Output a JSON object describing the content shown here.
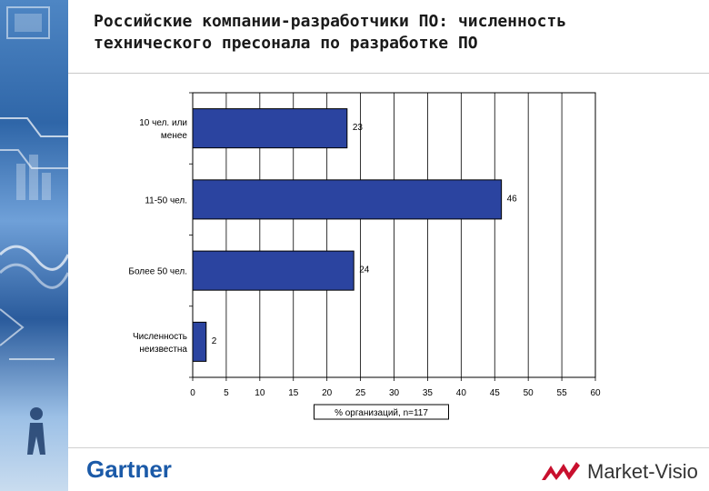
{
  "header": {
    "title_line1": "Российские компании-разработчики ПО: численность",
    "title_line2": "технического пресонала по разработке ПО"
  },
  "colors": {
    "bar_fill": "#2b44a0",
    "bar_stroke": "#000000",
    "grid": "#000000",
    "plot_bg": "#ffffff",
    "brand_gartner": "#1b5aa8",
    "brand_marketvisio": "#c8102e"
  },
  "chart_data": {
    "type": "bar",
    "orientation": "horizontal",
    "categories": [
      "10 чел. или менее",
      "11-50 чел.",
      "Более 50 чел.",
      "Численность неизвестна"
    ],
    "category_labels": [
      [
        "10 чел. или",
        "менее"
      ],
      [
        "11-50 чел."
      ],
      [
        "Более 50 чел."
      ],
      [
        "Численность",
        "неизвестна"
      ]
    ],
    "values": [
      23,
      46,
      24,
      2
    ],
    "data_labels": [
      "23",
      "46",
      "24",
      "2"
    ],
    "xlabel": "% организаций, n=117",
    "xlim": [
      0,
      60
    ],
    "xticks": [
      "0",
      "5",
      "10",
      "15",
      "20",
      "25",
      "30",
      "35",
      "40",
      "45",
      "50",
      "55",
      "60"
    ],
    "grid": "vertical",
    "legend": "none"
  },
  "footer": {
    "left_logo": "Gartner",
    "right_logo": "Market-Visio"
  }
}
